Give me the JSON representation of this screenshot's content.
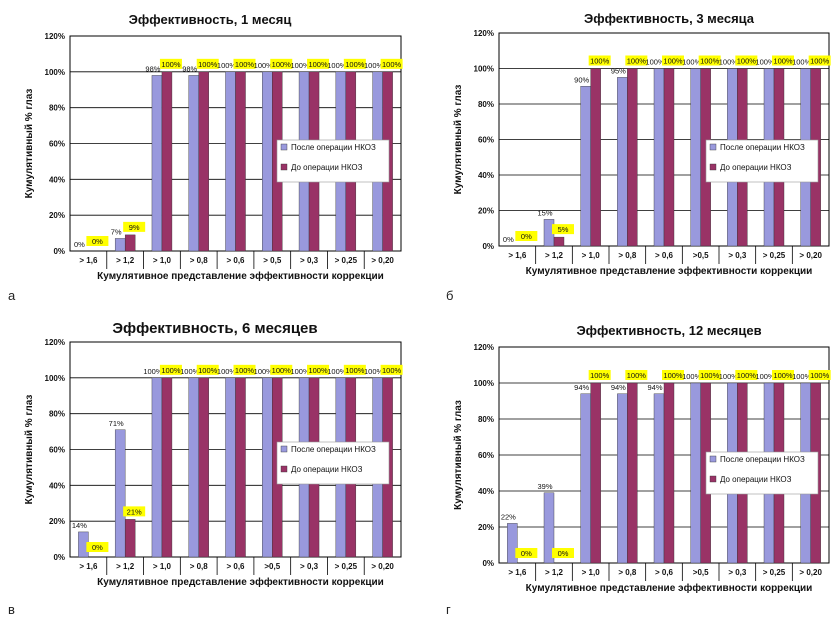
{
  "colors": {
    "after": "#9999dd",
    "before": "#993366",
    "label_bg": "#ffff00",
    "grid": "#000000"
  },
  "chart_data": [
    {
      "type": "bar",
      "panel_label": "а",
      "title": "Эффективность, 1 месяц",
      "ylabel": "Кумулятивный % глаз",
      "xlabel": "Кумулятивное представление эффективности коррекции",
      "categories": [
        "> 1,6",
        "> 1,2",
        "> 1,0",
        "> 0,8",
        "> 0,6",
        "> 0,5",
        "> 0,3",
        "> 0,25",
        "> 0,20"
      ],
      "yticks": [
        "0%",
        "20%",
        "40%",
        "60%",
        "80%",
        "100%",
        "120%"
      ],
      "ylim": [
        0,
        120
      ],
      "legend_position": "right",
      "series": [
        {
          "name": "После операции НКОЗ",
          "values": [
            0,
            7,
            98,
            98,
            100,
            100,
            100,
            100,
            100
          ],
          "labels": [
            "0%",
            "7%",
            "98%",
            "98%",
            "100%",
            "100%",
            "100%",
            "100%",
            "100%"
          ]
        },
        {
          "name": "До операции НКОЗ",
          "values": [
            0,
            9,
            100,
            100,
            100,
            100,
            100,
            100,
            100
          ],
          "labels": [
            "0%",
            "9%",
            "100%",
            "100%",
            "100%",
            "100%",
            "100%",
            "100%",
            "100%"
          ]
        }
      ]
    },
    {
      "type": "bar",
      "panel_label": "б",
      "title": "Эффективность, 3 месяца",
      "ylabel": "Кумулятивный % глаз",
      "xlabel": "Кумулятивное представление эффективности коррекции",
      "categories": [
        "> 1,6",
        "> 1,2",
        "> 1,0",
        "> 0,8",
        "> 0,6",
        ">0,5",
        "> 0,3",
        "> 0,25",
        "> 0,20"
      ],
      "yticks": [
        "0%",
        "20%",
        "40%",
        "60%",
        "80%",
        "100%",
        "120%"
      ],
      "ylim": [
        0,
        120
      ],
      "legend_position": "right",
      "series": [
        {
          "name": "После операции НКОЗ",
          "values": [
            0,
            15,
            90,
            95,
            100,
            100,
            100,
            100,
            100
          ],
          "labels": [
            "0%",
            "15%",
            "90%",
            "95%",
            "100%",
            "100%",
            "100%",
            "100%",
            "100%"
          ]
        },
        {
          "name": "До операции НКОЗ",
          "values": [
            0,
            5,
            100,
            100,
            100,
            100,
            100,
            100,
            100
          ],
          "labels": [
            "0%",
            "5%",
            "100%",
            "100%",
            "100%",
            "100%",
            "100%",
            "100%",
            "100%"
          ]
        }
      ]
    },
    {
      "type": "bar",
      "panel_label": "в",
      "title": "Эффективность, 6 месяцев",
      "ylabel": "Кумулятивный % глаз",
      "xlabel": "Кумулятивное представление эффективности коррекции",
      "categories": [
        "> 1,6",
        "> 1,2",
        "> 1,0",
        "> 0,8",
        "> 0,6",
        ">0,5",
        "> 0,3",
        "> 0,25",
        "> 0,20"
      ],
      "yticks": [
        "0%",
        "20%",
        "40%",
        "60%",
        "80%",
        "100%",
        "120%"
      ],
      "ylim": [
        0,
        120
      ],
      "legend_position": "right",
      "series": [
        {
          "name": "После операции НКОЗ",
          "values": [
            14,
            71,
            100,
            100,
            100,
            100,
            100,
            100,
            100
          ],
          "labels": [
            "14%",
            "71%",
            "100%",
            "100%",
            "100%",
            "100%",
            "100%",
            "100%",
            "100%"
          ]
        },
        {
          "name": "До операции НКОЗ",
          "values": [
            0,
            21,
            100,
            100,
            100,
            100,
            100,
            100,
            100
          ],
          "labels": [
            "0%",
            "21%",
            "100%",
            "100%",
            "100%",
            "100%",
            "100%",
            "100%",
            "100%"
          ]
        }
      ]
    },
    {
      "type": "bar",
      "panel_label": "г",
      "title": "Эффективность,    12 месяцев",
      "ylabel": "Кумулятивный % глаз",
      "xlabel": "Кумулятивное представление эффективности коррекции",
      "categories": [
        "> 1,6",
        "> 1,2",
        "> 1,0",
        "> 0,8",
        "> 0,6",
        ">0,5",
        "> 0,3",
        "> 0,25",
        "> 0,20"
      ],
      "yticks": [
        "0%",
        "20%",
        "40%",
        "60%",
        "80%",
        "100%",
        "120%"
      ],
      "ylim": [
        0,
        120
      ],
      "legend_position": "right",
      "series": [
        {
          "name": "После операции НКОЗ",
          "values": [
            22,
            39,
            94,
            94,
            94,
            100,
            100,
            100,
            100
          ],
          "labels": [
            "22%",
            "39%",
            "94%",
            "94%",
            "94%",
            "100%",
            "100%",
            "100%",
            "100%"
          ]
        },
        {
          "name": "До операции НКОЗ",
          "values": [
            0,
            0,
            100,
            100,
            100,
            100,
            100,
            100,
            100
          ],
          "labels": [
            "0%",
            "0%",
            "100%",
            "100%",
            "100%",
            "100%",
            "100%",
            "100%",
            "100%"
          ]
        }
      ]
    }
  ]
}
